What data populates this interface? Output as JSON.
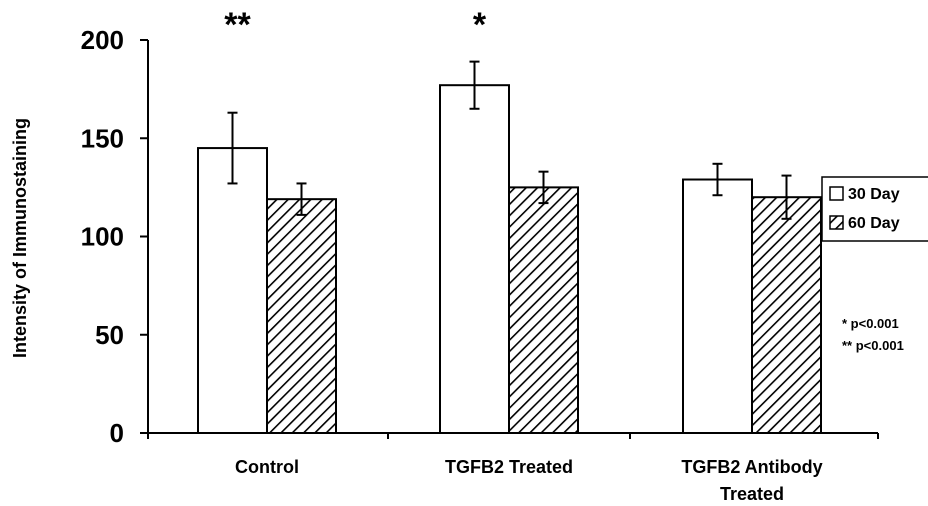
{
  "chart_data": {
    "type": "bar",
    "categories": [
      "Control",
      "TGFB2 Treated",
      "TGFB2 Antibody Treated"
    ],
    "category_lines": [
      [
        "Control"
      ],
      [
        "TGFB2 Treated"
      ],
      [
        "TGFB2 Antibody",
        "Treated"
      ]
    ],
    "series": [
      {
        "name": "30 Day",
        "values": [
          145,
          177,
          129
        ],
        "errors": [
          18,
          12,
          8
        ],
        "pattern": "open"
      },
      {
        "name": "60 Day",
        "values": [
          119,
          125,
          120
        ],
        "errors": [
          8,
          8,
          11
        ],
        "pattern": "hatched"
      }
    ],
    "ylabel": "Intensity of Immunostaining",
    "xlabel": "",
    "ylim": [
      0,
      200
    ],
    "yticks": [
      0,
      50,
      100,
      150,
      200
    ],
    "significance_marks": [
      "**",
      "*",
      ""
    ],
    "legend_position": "right",
    "notes": [
      "* p<0.001",
      "** p<0.001"
    ],
    "grid": false
  }
}
